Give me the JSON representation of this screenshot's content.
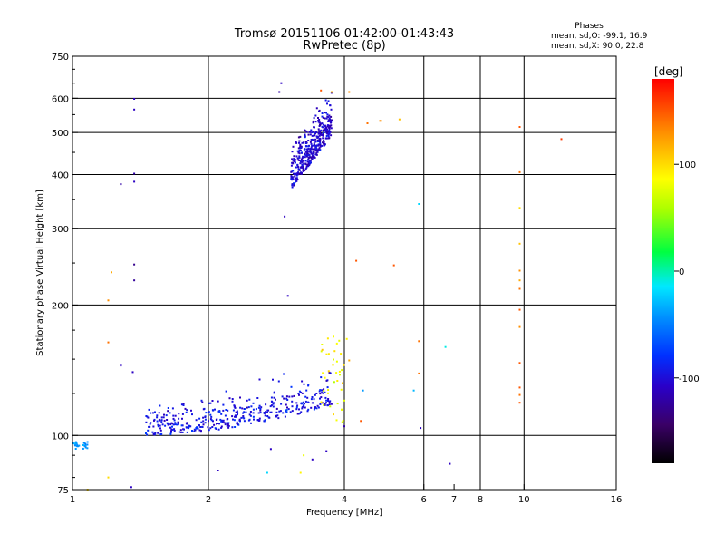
{
  "title_line1": "Tromsø 20151106 01:42:00-01:43:43",
  "title_line2": "RwPretec (8p)",
  "phase_header": "Phases",
  "phase_stats": [
    "mean, sd,O: -99.1, 16.9",
    "mean, sd,X:  90.0, 22.8"
  ],
  "colorbar": {
    "label": "[deg]",
    "ticks": [
      {
        "value": 100,
        "label": "100"
      },
      {
        "value": 0,
        "label": "0"
      },
      {
        "value": -100,
        "label": "-100"
      }
    ],
    "range": [
      -180,
      180
    ]
  },
  "chart_data": {
    "type": "scatter",
    "xlabel": "Frequency [MHz]",
    "ylabel": "Stationary phase Virtual Height [km]",
    "xscale": "log",
    "yscale": "log",
    "xlim": [
      1,
      16
    ],
    "ylim": [
      75,
      750
    ],
    "x_ticks": [
      {
        "v": 1,
        "l": "1"
      },
      {
        "v": 2,
        "l": "2"
      },
      {
        "v": 4,
        "l": "4"
      },
      {
        "v": 6,
        "l": "6"
      },
      {
        "v": 7,
        "l": "7"
      },
      {
        "v": 8,
        "l": "8"
      },
      {
        "v": 10,
        "l": "10"
      },
      {
        "v": 16,
        "l": "16"
      }
    ],
    "x_gridlines": [
      2,
      4,
      6,
      8,
      10
    ],
    "y_ticks": [
      {
        "v": 75,
        "l": "75"
      },
      {
        "v": 100,
        "l": "100"
      },
      {
        "v": 200,
        "l": "200"
      },
      {
        "v": 300,
        "l": "300"
      },
      {
        "v": 400,
        "l": "400"
      },
      {
        "v": 500,
        "l": "500"
      },
      {
        "v": 600,
        "l": "600"
      },
      {
        "v": 750,
        "l": "750"
      }
    ],
    "y_gridlines": [
      100,
      200,
      300,
      400,
      500,
      600
    ],
    "color_key": "phase_deg",
    "clusters": [
      {
        "name": "O-mode F-layer trace",
        "f_range": [
          3.05,
          3.75
        ],
        "h_range": [
          360,
          620
        ],
        "phase_mean": -105,
        "phase_sd": 15,
        "count": 420,
        "profile": "F"
      },
      {
        "name": "O-mode E-F low trace",
        "f_range": [
          1.45,
          3.75
        ],
        "h_range": [
          100,
          170
        ],
        "phase_mean": -95,
        "phase_sd": 15,
        "count": 420,
        "profile": "E"
      },
      {
        "name": "low-frequency trace",
        "f_range": [
          1.0,
          1.08
        ],
        "h_range": [
          93,
          97
        ],
        "phase_mean": -40,
        "phase_sd": 8,
        "count": 25,
        "profile": "flat"
      },
      {
        "name": "X-mode low echoes",
        "f_range": [
          3.55,
          4.0
        ],
        "h_range": [
          105,
          170
        ],
        "phase_mean": 85,
        "phase_sd": 20,
        "count": 40,
        "profile": "scatter"
      }
    ],
    "points": [
      {
        "x": 1.37,
        "y": 598,
        "phase": -110
      },
      {
        "x": 1.37,
        "y": 565,
        "phase": -110
      },
      {
        "x": 1.37,
        "y": 402,
        "phase": -120
      },
      {
        "x": 1.37,
        "y": 385,
        "phase": -110
      },
      {
        "x": 1.28,
        "y": 380,
        "phase": -120
      },
      {
        "x": 1.37,
        "y": 248,
        "phase": -130
      },
      {
        "x": 1.37,
        "y": 228,
        "phase": -125
      },
      {
        "x": 1.22,
        "y": 238,
        "phase": 120
      },
      {
        "x": 1.2,
        "y": 205,
        "phase": 130
      },
      {
        "x": 1.2,
        "y": 164,
        "phase": 140
      },
      {
        "x": 1.28,
        "y": 145,
        "phase": -110
      },
      {
        "x": 1.36,
        "y": 140,
        "phase": -110
      },
      {
        "x": 2.1,
        "y": 83,
        "phase": -110
      },
      {
        "x": 1.2,
        "y": 80,
        "phase": 100
      },
      {
        "x": 1.08,
        "y": 75,
        "phase": 100
      },
      {
        "x": 1.35,
        "y": 76,
        "phase": -110
      },
      {
        "x": 2.95,
        "y": 320,
        "phase": -110
      },
      {
        "x": 3.0,
        "y": 210,
        "phase": -110
      },
      {
        "x": 2.9,
        "y": 650,
        "phase": -110
      },
      {
        "x": 2.87,
        "y": 620,
        "phase": -120
      },
      {
        "x": 3.55,
        "y": 625,
        "phase": 150
      },
      {
        "x": 3.75,
        "y": 620,
        "phase": 110
      },
      {
        "x": 4.1,
        "y": 620,
        "phase": 130
      },
      {
        "x": 4.5,
        "y": 525,
        "phase": 140
      },
      {
        "x": 4.8,
        "y": 532,
        "phase": 130
      },
      {
        "x": 5.3,
        "y": 536,
        "phase": 110
      },
      {
        "x": 5.85,
        "y": 342,
        "phase": -20
      },
      {
        "x": 4.25,
        "y": 253,
        "phase": 150
      },
      {
        "x": 5.15,
        "y": 247,
        "phase": 150
      },
      {
        "x": 4.05,
        "y": 167,
        "phase": 90
      },
      {
        "x": 4.0,
        "y": 105,
        "phase": -120
      },
      {
        "x": 4.35,
        "y": 108,
        "phase": 150
      },
      {
        "x": 5.85,
        "y": 165,
        "phase": 140
      },
      {
        "x": 5.85,
        "y": 139,
        "phase": 140
      },
      {
        "x": 5.7,
        "y": 127,
        "phase": -30
      },
      {
        "x": 5.9,
        "y": 104,
        "phase": -110
      },
      {
        "x": 6.7,
        "y": 160,
        "phase": -10
      },
      {
        "x": 6.85,
        "y": 86,
        "phase": -110
      },
      {
        "x": 4.4,
        "y": 127,
        "phase": -40
      },
      {
        "x": 4.1,
        "y": 149,
        "phase": 120
      },
      {
        "x": 9.78,
        "y": 515,
        "phase": 150
      },
      {
        "x": 9.78,
        "y": 405,
        "phase": 140
      },
      {
        "x": 9.78,
        "y": 335,
        "phase": 100
      },
      {
        "x": 9.78,
        "y": 277,
        "phase": 110
      },
      {
        "x": 9.78,
        "y": 240,
        "phase": 130
      },
      {
        "x": 9.78,
        "y": 228,
        "phase": 120
      },
      {
        "x": 9.78,
        "y": 218,
        "phase": 140
      },
      {
        "x": 9.78,
        "y": 195,
        "phase": 150
      },
      {
        "x": 9.78,
        "y": 178,
        "phase": 130
      },
      {
        "x": 9.78,
        "y": 147,
        "phase": 150
      },
      {
        "x": 9.78,
        "y": 129,
        "phase": 150
      },
      {
        "x": 9.78,
        "y": 124,
        "phase": 140
      },
      {
        "x": 9.78,
        "y": 119,
        "phase": 150
      },
      {
        "x": 12.1,
        "y": 483,
        "phase": 160
      },
      {
        "x": 3.2,
        "y": 82,
        "phase": 90
      },
      {
        "x": 3.25,
        "y": 90,
        "phase": 80
      },
      {
        "x": 3.4,
        "y": 88,
        "phase": -110
      },
      {
        "x": 2.75,
        "y": 93,
        "phase": -110
      },
      {
        "x": 2.7,
        "y": 82,
        "phase": -20
      },
      {
        "x": 3.65,
        "y": 92,
        "phase": -110
      }
    ]
  }
}
